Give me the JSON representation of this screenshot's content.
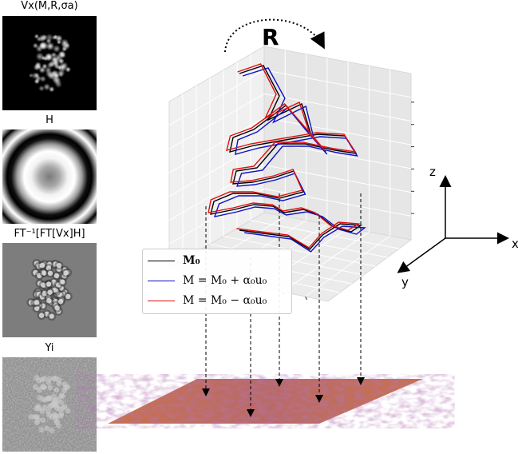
{
  "panels": {
    "vx_title": "Vx(M,R,σa)",
    "h_title": "H",
    "ift_title": "FT⁻¹[FT[Vx]H]",
    "yi_title": "Yi"
  },
  "rotation_label": "R",
  "legend": {
    "m0": "M₀",
    "plus": "M = M₀ + α₀u₀",
    "minus": "M = M₀ − α₀u₀"
  },
  "axes": {
    "x": "x",
    "y": "y",
    "z": "z"
  },
  "colors": {
    "m0": "#000000",
    "plus": "#1010c8",
    "minus": "#e01010",
    "plane": "#c5705a"
  }
}
